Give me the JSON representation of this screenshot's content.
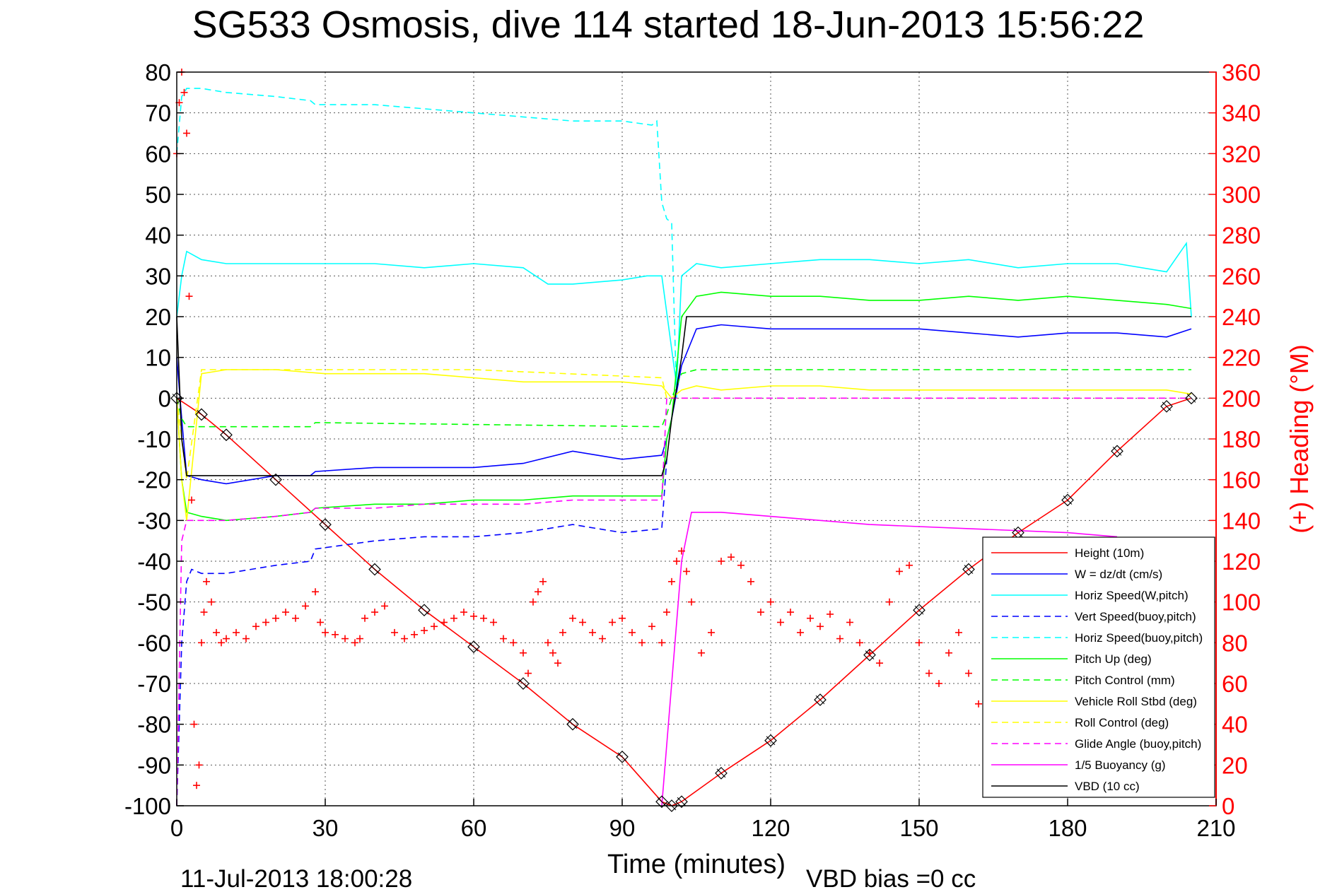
{
  "chart_data": {
    "type": "line",
    "title": "SG533 Osmosis, dive 114 started 18-Jun-2013 15:56:22",
    "xlabel": "Time (minutes)",
    "ylabel_right": "(+) Heading (°M)",
    "footer_left": "11-Jul-2013 18:00:28",
    "footer_right": "VBD bias =0 cc",
    "xlim": [
      0,
      210
    ],
    "ylim": [
      -100,
      80
    ],
    "ylim_right": [
      0,
      360
    ],
    "x_ticks": [
      "0",
      "30",
      "60",
      "90",
      "120",
      "150",
      "180",
      "210"
    ],
    "y_ticks": [
      "80",
      "70",
      "60",
      "50",
      "40",
      "30",
      "20",
      "10",
      "0",
      "-10",
      "-20",
      "-30",
      "-40",
      "-50",
      "-60",
      "-70",
      "-80",
      "-90",
      "-100"
    ],
    "y_ticks_right": [
      "360",
      "340",
      "320",
      "300",
      "280",
      "260",
      "240",
      "220",
      "200",
      "180",
      "160",
      "140",
      "120",
      "100",
      "80",
      "60",
      "40",
      "20",
      "0"
    ],
    "grid": true,
    "legend_position": "bottom-right",
    "series": [
      {
        "name": "Height (10m)",
        "color": "#ff0000",
        "style": "solid",
        "x": [
          0,
          5,
          10,
          20,
          30,
          40,
          50,
          60,
          70,
          80,
          90,
          98,
          100,
          102,
          110,
          120,
          130,
          140,
          150,
          160,
          170,
          180,
          190,
          200,
          205
        ],
        "y": [
          0,
          -4,
          -9,
          -20,
          -31,
          -42,
          -52,
          -61,
          -70,
          -80,
          -88,
          -99,
          -100,
          -99,
          -92,
          -84,
          -74,
          -63,
          -52,
          -42,
          -33,
          -25,
          -13,
          -2,
          0
        ]
      },
      {
        "name": "W = dz/dt (cm/s)",
        "color": "#0000ff",
        "style": "solid",
        "x": [
          0,
          1,
          2,
          5,
          10,
          20,
          27,
          28,
          40,
          50,
          60,
          70,
          80,
          90,
          98,
          99,
          100,
          102,
          105,
          110,
          120,
          130,
          140,
          150,
          160,
          170,
          180,
          190,
          200,
          205
        ],
        "y": [
          10,
          -5,
          -19,
          -20,
          -21,
          -19,
          -19,
          -18,
          -17,
          -17,
          -17,
          -16,
          -13,
          -15,
          -14,
          -10,
          -5,
          8,
          17,
          18,
          17,
          17,
          17,
          17,
          16,
          15,
          16,
          16,
          15,
          17
        ]
      },
      {
        "name": "Horiz Speed(W,pitch)",
        "color": "#00ffff",
        "style": "solid",
        "x": [
          0,
          1,
          2,
          5,
          10,
          20,
          30,
          40,
          50,
          60,
          70,
          75,
          80,
          90,
          95,
          98,
          100,
          101,
          102,
          105,
          110,
          120,
          130,
          140,
          150,
          160,
          170,
          180,
          190,
          200,
          204,
          205
        ],
        "y": [
          20,
          30,
          36,
          34,
          33,
          33,
          33,
          33,
          32,
          33,
          32,
          28,
          28,
          29,
          30,
          30,
          12,
          3,
          30,
          33,
          32,
          33,
          34,
          34,
          33,
          34,
          32,
          33,
          33,
          31,
          38,
          20
        ]
      },
      {
        "name": "Vert Speed(buoy,pitch)",
        "color": "#0000ff",
        "style": "dashed",
        "x": [
          0,
          1,
          2,
          3,
          5,
          10,
          20,
          27,
          28,
          40,
          50,
          60,
          70,
          80,
          90,
          98,
          99
        ],
        "y": [
          -100,
          -60,
          -45,
          -42,
          -43,
          -43,
          -41,
          -40,
          -37,
          -35,
          -34,
          -34,
          -33,
          -31,
          -33,
          -32,
          -15
        ]
      },
      {
        "name": "Horiz Speed(buoy,pitch)",
        "color": "#00ffff",
        "style": "dashed",
        "x": [
          0,
          1,
          2,
          5,
          10,
          20,
          27,
          28,
          40,
          50,
          60,
          70,
          80,
          90,
          96,
          97,
          98,
          99,
          100,
          101
        ],
        "y": [
          60,
          74,
          76,
          76,
          75,
          74,
          73,
          72,
          72,
          71,
          70,
          69,
          68,
          68,
          67,
          68,
          48,
          44,
          43,
          0
        ]
      },
      {
        "name": "Pitch Up (deg)",
        "color": "#00ff00",
        "style": "solid",
        "x": [
          0,
          1,
          2,
          5,
          10,
          20,
          27,
          28,
          40,
          50,
          60,
          70,
          80,
          90,
          98,
          99,
          100,
          102,
          105,
          110,
          120,
          130,
          140,
          150,
          160,
          170,
          180,
          190,
          200,
          205
        ],
        "y": [
          0,
          -20,
          -28,
          -29,
          -30,
          -29,
          -28,
          -27,
          -26,
          -26,
          -25,
          -25,
          -24,
          -24,
          -24,
          -10,
          -5,
          20,
          25,
          26,
          25,
          25,
          24,
          24,
          25,
          24,
          25,
          24,
          23,
          22
        ]
      },
      {
        "name": "Pitch Control (mm)",
        "color": "#00ff00",
        "style": "dashed",
        "x": [
          0,
          1,
          2,
          27,
          28,
          98,
          99,
          100,
          102,
          105,
          205
        ],
        "y": [
          0,
          -5,
          -7,
          -7,
          -6,
          -7,
          -4,
          0,
          6,
          7,
          7
        ]
      },
      {
        "name": "Vehicle Roll Stbd (deg)",
        "color": "#ffff00",
        "style": "solid",
        "x": [
          0,
          1,
          2,
          5,
          10,
          20,
          30,
          40,
          50,
          60,
          70,
          80,
          90,
          98,
          100,
          102,
          105,
          110,
          120,
          130,
          140,
          150,
          160,
          170,
          180,
          190,
          200,
          205
        ],
        "y": [
          0,
          -20,
          -30,
          6,
          7,
          7,
          6,
          6,
          6,
          5,
          4,
          4,
          4,
          3,
          0,
          2,
          3,
          2,
          3,
          3,
          2,
          2,
          2,
          2,
          2,
          2,
          2,
          1
        ]
      },
      {
        "name": "Roll Control (deg)",
        "color": "#ffff00",
        "style": "dashed",
        "x": [
          0,
          1,
          2,
          5,
          30,
          60,
          98,
          99,
          100,
          205
        ],
        "y": [
          0,
          -10,
          -20,
          7,
          7,
          7,
          5,
          0,
          0,
          0
        ]
      },
      {
        "name": "Glide Angle (buoy,pitch)",
        "color": "#ff00ff",
        "style": "dashed",
        "x": [
          0,
          1,
          2,
          5,
          10,
          20,
          27,
          28,
          40,
          50,
          60,
          70,
          80,
          90,
          98,
          99,
          100,
          102,
          205
        ],
        "y": [
          -100,
          -35,
          -30,
          -30,
          -30,
          -29,
          -28,
          -27,
          -27,
          -26,
          -26,
          -26,
          -25,
          -25,
          -25,
          0,
          0,
          0,
          0
        ]
      },
      {
        "name": "1/5 Buoyancy (g)",
        "color": "#ff00ff",
        "style": "solid",
        "x": [
          98,
          100,
          102,
          104,
          110,
          120,
          140,
          160,
          180,
          190
        ],
        "y": [
          -100,
          -70,
          -40,
          -28,
          -28,
          -29,
          -31,
          -32,
          -33,
          -34
        ]
      },
      {
        "name": "VBD (10 cc)",
        "color": "#000000",
        "style": "solid",
        "x": [
          0,
          1,
          2,
          5,
          10,
          20,
          30,
          60,
          90,
          98,
          99,
          100,
          102,
          103,
          110,
          120,
          150,
          180,
          205
        ],
        "y": [
          20,
          -10,
          -19,
          -19,
          -19,
          -19,
          -19,
          -19,
          -19,
          -19,
          -15,
          -5,
          10,
          20,
          20,
          20,
          20,
          20,
          20
        ]
      }
    ],
    "heading_series": {
      "name": "Heading",
      "color": "#ff0000",
      "marker": "+",
      "axis": "right",
      "x": [
        0,
        0.5,
        1,
        1.5,
        2,
        2.5,
        3,
        3.5,
        4,
        4.5,
        5,
        5.5,
        6,
        7,
        8,
        9,
        10,
        12,
        14,
        16,
        18,
        20,
        22,
        24,
        26,
        28,
        29,
        30,
        32,
        34,
        36,
        37,
        38,
        40,
        42,
        44,
        46,
        48,
        50,
        52,
        54,
        56,
        58,
        60,
        62,
        64,
        66,
        68,
        70,
        71,
        72,
        73,
        74,
        75,
        76,
        77,
        78,
        80,
        82,
        84,
        86,
        88,
        90,
        92,
        94,
        96,
        98,
        99,
        100,
        101,
        102,
        103,
        104,
        106,
        108,
        110,
        112,
        114,
        116,
        118,
        120,
        122,
        124,
        126,
        128,
        130,
        132,
        134,
        136,
        138,
        140,
        142,
        144,
        146,
        148,
        150,
        152,
        154,
        156,
        158,
        160,
        162
      ],
      "y": [
        320,
        345,
        360,
        350,
        330,
        250,
        150,
        40,
        10,
        20,
        80,
        95,
        110,
        100,
        85,
        80,
        82,
        85,
        82,
        88,
        90,
        92,
        95,
        92,
        98,
        105,
        90,
        85,
        84,
        82,
        80,
        82,
        92,
        95,
        98,
        85,
        82,
        84,
        86,
        88,
        90,
        92,
        95,
        93,
        92,
        90,
        82,
        80,
        75,
        65,
        100,
        105,
        110,
        80,
        75,
        70,
        85,
        92,
        90,
        85,
        82,
        90,
        92,
        85,
        80,
        88,
        80,
        95,
        110,
        120,
        125,
        115,
        100,
        75,
        85,
        120,
        122,
        118,
        110,
        95,
        100,
        90,
        95,
        85,
        92,
        88,
        94,
        82,
        90,
        80,
        75,
        70,
        100,
        115,
        118,
        80,
        65,
        60,
        75,
        85,
        65,
        50
      ]
    }
  }
}
